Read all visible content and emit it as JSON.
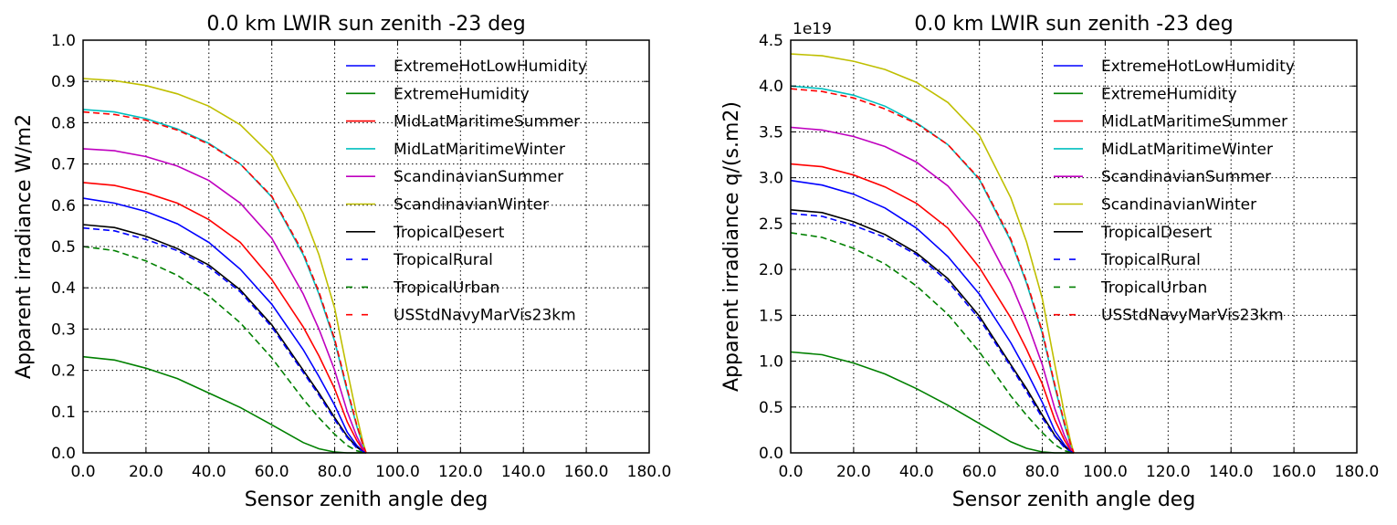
{
  "chart_data": [
    {
      "type": "line",
      "title": "0.0 km LWIR sun zenith -23 deg",
      "xlabel": "Sensor zenith angle deg",
      "ylabel": "Apparent irradiance W/m2",
      "offset_text": "",
      "xlim": [
        0,
        180
      ],
      "ylim": [
        0,
        1.0
      ],
      "xticks": [
        "0.0",
        "20.0",
        "40.0",
        "60.0",
        "80.0",
        "100.0",
        "120.0",
        "140.0",
        "160.0",
        "180.0"
      ],
      "yticks": [
        "0.0",
        "0.1",
        "0.2",
        "0.3",
        "0.4",
        "0.5",
        "0.6",
        "0.7",
        "0.8",
        "0.9",
        "1.0"
      ],
      "grid": true,
      "legend_position": "upper-right",
      "x": [
        0,
        10,
        20,
        30,
        40,
        50,
        60,
        70,
        75,
        80,
        84,
        87,
        89,
        90
      ],
      "series": [
        {
          "name": "ExtremeHotLowHumidity",
          "color": "#0000ff",
          "dash": "solid",
          "values": [
            0.617,
            0.605,
            0.585,
            0.555,
            0.51,
            0.445,
            0.36,
            0.25,
            0.185,
            0.115,
            0.05,
            0.018,
            0.004,
            0
          ]
        },
        {
          "name": "ExtremeHumidity",
          "color": "#008000",
          "dash": "solid",
          "values": [
            0.233,
            0.225,
            0.205,
            0.18,
            0.145,
            0.11,
            0.068,
            0.025,
            0.01,
            0.002,
            0,
            0,
            0,
            0
          ]
        },
        {
          "name": "MidLatMaritimeSummer",
          "color": "#ff0000",
          "dash": "solid",
          "values": [
            0.655,
            0.648,
            0.63,
            0.605,
            0.565,
            0.51,
            0.42,
            0.305,
            0.235,
            0.155,
            0.075,
            0.03,
            0.007,
            0
          ]
        },
        {
          "name": "MidLatMaritimeWinter",
          "color": "#00bfbf",
          "dash": "solid",
          "values": [
            0.832,
            0.826,
            0.81,
            0.785,
            0.75,
            0.7,
            0.62,
            0.48,
            0.385,
            0.27,
            0.15,
            0.065,
            0.018,
            0
          ]
        },
        {
          "name": "ScandinavianSummer",
          "color": "#bf00bf",
          "dash": "solid",
          "values": [
            0.737,
            0.732,
            0.718,
            0.695,
            0.66,
            0.605,
            0.52,
            0.385,
            0.3,
            0.2,
            0.1,
            0.04,
            0.01,
            0
          ]
        },
        {
          "name": "ScandinavianWinter",
          "color": "#bfbf00",
          "dash": "solid",
          "values": [
            0.907,
            0.902,
            0.89,
            0.87,
            0.84,
            0.795,
            0.72,
            0.58,
            0.48,
            0.35,
            0.2,
            0.09,
            0.025,
            0
          ]
        },
        {
          "name": "TropicalDesert",
          "color": "#000000",
          "dash": "solid",
          "values": [
            0.553,
            0.546,
            0.525,
            0.495,
            0.455,
            0.395,
            0.31,
            0.2,
            0.145,
            0.085,
            0.04,
            0.014,
            0.003,
            0
          ]
        },
        {
          "name": "TropicalRural",
          "color": "#0000ff",
          "dash": "dashed",
          "values": [
            0.545,
            0.538,
            0.517,
            0.49,
            0.45,
            0.39,
            0.305,
            0.195,
            0.14,
            0.08,
            0.037,
            0.012,
            0.003,
            0
          ]
        },
        {
          "name": "TropicalUrban",
          "color": "#008000",
          "dash": "dashed",
          "values": [
            0.5,
            0.49,
            0.465,
            0.43,
            0.38,
            0.315,
            0.23,
            0.13,
            0.085,
            0.045,
            0.018,
            0.005,
            0.001,
            0
          ]
        },
        {
          "name": "USStdNavyMarVis23km",
          "color": "#ff0000",
          "dash": "dashed",
          "values": [
            0.826,
            0.82,
            0.806,
            0.782,
            0.748,
            0.7,
            0.622,
            0.485,
            0.39,
            0.275,
            0.155,
            0.068,
            0.019,
            0
          ]
        }
      ]
    },
    {
      "type": "line",
      "title": "0.0 km LWIR sun zenith -23 deg",
      "xlabel": "Sensor zenith angle deg",
      "ylabel": "Apparent irradiance q/(s.m2)",
      "offset_text": "1e19",
      "xlim": [
        0,
        180
      ],
      "ylim": [
        0,
        4.5
      ],
      "xticks": [
        "0.0",
        "20.0",
        "40.0",
        "60.0",
        "80.0",
        "100.0",
        "120.0",
        "140.0",
        "160.0",
        "180.0"
      ],
      "yticks": [
        "0.0",
        "0.5",
        "1.0",
        "1.5",
        "2.0",
        "2.5",
        "3.0",
        "3.5",
        "4.0",
        "4.5"
      ],
      "grid": true,
      "legend_position": "upper-right",
      "x": [
        0,
        10,
        20,
        30,
        40,
        50,
        60,
        70,
        75,
        80,
        84,
        87,
        89,
        90
      ],
      "series": [
        {
          "name": "ExtremeHotLowHumidity",
          "color": "#0000ff",
          "dash": "solid",
          "values": [
            2.97,
            2.92,
            2.82,
            2.67,
            2.45,
            2.14,
            1.73,
            1.2,
            0.89,
            0.55,
            0.24,
            0.09,
            0.02,
            0
          ]
        },
        {
          "name": "ExtremeHumidity",
          "color": "#008000",
          "dash": "solid",
          "values": [
            1.1,
            1.07,
            0.98,
            0.86,
            0.7,
            0.52,
            0.32,
            0.12,
            0.05,
            0.01,
            0,
            0,
            0,
            0
          ]
        },
        {
          "name": "MidLatMaritimeSummer",
          "color": "#ff0000",
          "dash": "solid",
          "values": [
            3.15,
            3.12,
            3.03,
            2.9,
            2.72,
            2.45,
            2.02,
            1.47,
            1.13,
            0.75,
            0.36,
            0.14,
            0.03,
            0
          ]
        },
        {
          "name": "MidLatMaritimeWinter",
          "color": "#00bfbf",
          "dash": "solid",
          "values": [
            4.0,
            3.97,
            3.9,
            3.78,
            3.6,
            3.36,
            2.98,
            2.31,
            1.85,
            1.3,
            0.72,
            0.31,
            0.09,
            0
          ]
        },
        {
          "name": "ScandinavianSummer",
          "color": "#bf00bf",
          "dash": "solid",
          "values": [
            3.55,
            3.52,
            3.45,
            3.34,
            3.17,
            2.91,
            2.5,
            1.85,
            1.44,
            0.96,
            0.48,
            0.19,
            0.05,
            0
          ]
        },
        {
          "name": "ScandinavianWinter",
          "color": "#bfbf00",
          "dash": "solid",
          "values": [
            4.35,
            4.33,
            4.27,
            4.18,
            4.04,
            3.82,
            3.46,
            2.78,
            2.3,
            1.68,
            0.96,
            0.43,
            0.12,
            0
          ]
        },
        {
          "name": "TropicalDesert",
          "color": "#000000",
          "dash": "solid",
          "values": [
            2.65,
            2.62,
            2.52,
            2.38,
            2.18,
            1.9,
            1.49,
            0.96,
            0.7,
            0.41,
            0.19,
            0.07,
            0.015,
            0
          ]
        },
        {
          "name": "TropicalRural",
          "color": "#0000ff",
          "dash": "dashed",
          "values": [
            2.61,
            2.58,
            2.48,
            2.35,
            2.16,
            1.87,
            1.46,
            0.94,
            0.67,
            0.38,
            0.18,
            0.06,
            0.014,
            0
          ]
        },
        {
          "name": "TropicalUrban",
          "color": "#008000",
          "dash": "dashed",
          "values": [
            2.4,
            2.35,
            2.23,
            2.06,
            1.82,
            1.51,
            1.1,
            0.62,
            0.41,
            0.22,
            0.09,
            0.025,
            0.005,
            0
          ]
        },
        {
          "name": "USStdNavyMarVis23km",
          "color": "#ff0000",
          "dash": "dashed",
          "values": [
            3.97,
            3.94,
            3.87,
            3.75,
            3.59,
            3.36,
            2.99,
            2.33,
            1.87,
            1.32,
            0.74,
            0.33,
            0.09,
            0
          ]
        }
      ]
    }
  ]
}
